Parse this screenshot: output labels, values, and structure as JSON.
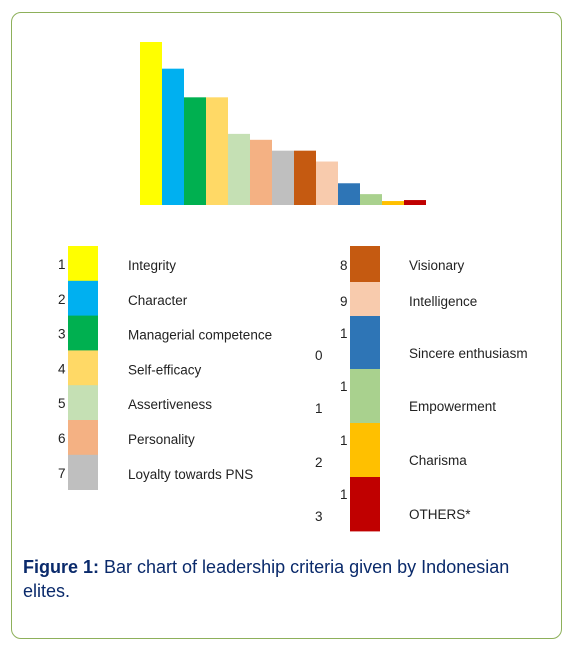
{
  "chart_data": {
    "type": "bar",
    "categories": [
      "Integrity",
      "Character",
      "Managerial competence",
      "Self-efficacy",
      "Assertiveness",
      "Personality",
      "Loyalty towards PNS",
      "Visionary",
      "Intelligence",
      "Sincere enthusiasm",
      "Empowerment",
      "Charisma",
      "OTHERS*"
    ],
    "legend_numbers": [
      "1",
      "2",
      "3",
      "4",
      "5",
      "6",
      "7",
      "8",
      "9",
      "10",
      "11",
      "12",
      "13"
    ],
    "values": [
      165,
      138,
      109,
      109,
      72,
      66,
      55,
      55,
      44,
      22,
      11,
      4,
      5
    ],
    "colors": [
      "#ffff00",
      "#00b0f0",
      "#00b050",
      "#ffd966",
      "#c5e0b4",
      "#f4b183",
      "#bfbfbf",
      "#c55a11",
      "#f8cbad",
      "#2e75b6",
      "#a9d18e",
      "#ffc000",
      "#c00000"
    ],
    "ylim": [
      0,
      165
    ]
  },
  "caption": {
    "label": "Figure 1:",
    "text": " Bar chart of leadership criteria given by Indonesian elites."
  }
}
